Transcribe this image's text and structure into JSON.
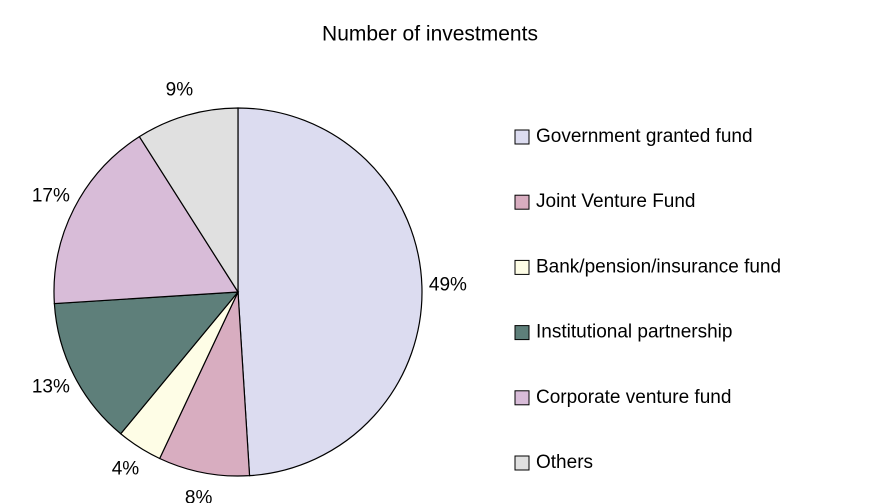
{
  "chart_data": {
    "type": "pie",
    "title": "Number of investments",
    "categories": [
      "Government granted fund",
      "Joint Venture Fund",
      "Bank/pension/insurance fund",
      "Institutional partnership",
      "Corporate venture fund",
      "Others"
    ],
    "values": [
      49,
      8,
      4,
      13,
      17,
      9
    ],
    "value_labels": [
      "49%",
      "8%",
      "4%",
      "13%",
      "17%",
      "9%"
    ],
    "colors": [
      "#dcdcf0",
      "#d8adc0",
      "#fefde6",
      "#5e7f7a",
      "#d8bcd8",
      "#e0e0e0"
    ],
    "legend": "right"
  }
}
